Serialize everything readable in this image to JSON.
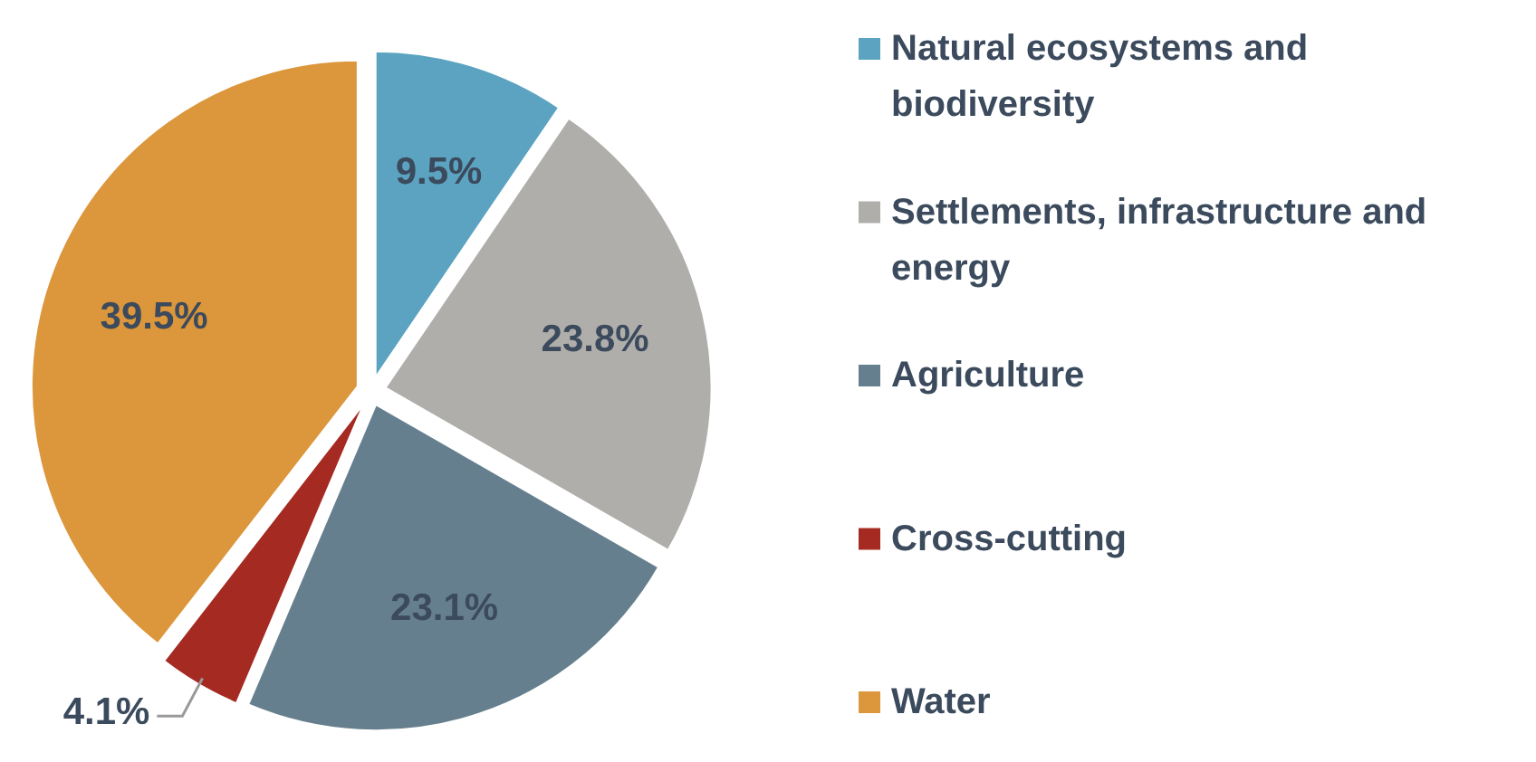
{
  "chart_data": {
    "type": "pie",
    "categories": [
      "Natural ecosystems and biodiversity",
      "Settlements, infrastructure and energy",
      "Agriculture",
      "Cross-cutting",
      "Water"
    ],
    "values": [
      9.5,
      23.8,
      23.1,
      4.1,
      39.5
    ],
    "colors": [
      "#5ba3c0",
      "#b0aeab",
      "#667f8e",
      "#a52a22",
      "#dc963c"
    ],
    "value_labels": [
      "9.5%",
      "23.8%",
      "23.1%",
      "4.1%",
      "39.5%"
    ],
    "legend": "right"
  }
}
